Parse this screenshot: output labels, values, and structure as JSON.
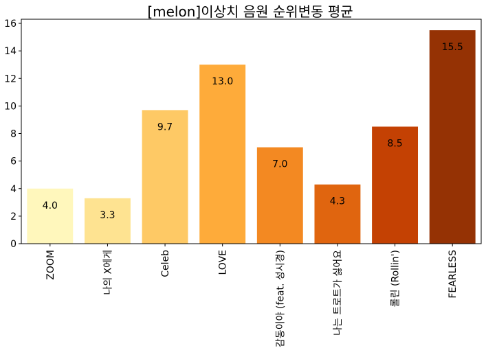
{
  "chart_data": {
    "type": "bar",
    "title": "[melon]이상치 음원 순위변동 평균",
    "xlabel": "",
    "ylabel": "",
    "categories": [
      "ZOOM",
      "나의 X에게",
      "Celeb",
      "LOVE",
      "감동이야 (feat. 성시경)",
      "나는 트로트가 싫어요",
      "롤린 (Rollin')",
      "FEARLESS"
    ],
    "values": [
      4.0,
      3.3,
      9.7,
      13.0,
      7.0,
      4.3,
      8.5,
      15.5
    ],
    "value_labels": [
      "4.0",
      "3.3",
      "9.7",
      "13.0",
      "7.0",
      "4.3",
      "8.5",
      "15.5"
    ],
    "colors": [
      "#fff7bc",
      "#fee391",
      "#fec965",
      "#feab3a",
      "#f38922",
      "#e0650f",
      "#c44103",
      "#953204"
    ],
    "ylim": [
      0,
      16.3
    ],
    "yticks": [
      0,
      2,
      4,
      6,
      8,
      10,
      12,
      14,
      16
    ],
    "grid": false,
    "legend": "none"
  }
}
